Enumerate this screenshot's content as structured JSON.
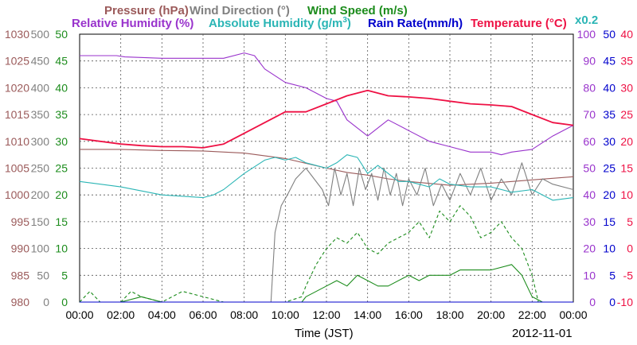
{
  "header": {
    "pressure": "Pressure (hPa)",
    "wind_direction": "Wind Direction (°)",
    "wind_speed": "Wind Speed (m/s)",
    "relative_humidity": "Relative Humidity (%)",
    "absolute_humidity_prefix": "Absolute Humidity (g/m",
    "absolute_humidity_sup": "3",
    "absolute_humidity_suffix": ")",
    "rain_rate": "Rain Rate(mm/h)",
    "temperature": "Temperature (°C)",
    "abs_factor": "x0.2"
  },
  "footer": {
    "xlabel": "Time (JST)",
    "date": "2012-11-01"
  },
  "colors": {
    "pressure": "#9b5a5a",
    "wind_direction": "#808080",
    "wind_speed": "#1c8c1c",
    "relative_humidity": "#9933cc",
    "absolute_humidity": "#2ab5b5",
    "rain_rate": "#0000cc",
    "temperature": "#ee1144"
  },
  "chart_data": {
    "type": "line",
    "xlabel": "Time (JST)",
    "x_ticks": [
      "00:00",
      "02:00",
      "04:00",
      "06:00",
      "08:00",
      "10:00",
      "12:00",
      "14:00",
      "16:00",
      "18:00",
      "20:00",
      "22:00",
      "00:00"
    ],
    "xlim_hours": [
      0,
      24
    ],
    "grid": true,
    "axes": {
      "pressure": {
        "label": "Pressure (hPa)",
        "range": [
          980,
          1030
        ],
        "ticks": [
          "1030",
          "1025",
          "1020",
          "1015",
          "1010",
          "1005",
          "1000",
          "995",
          "990",
          "985",
          "980"
        ]
      },
      "wind_direction": {
        "label": "Wind Direction (°)",
        "range": [
          0,
          500
        ],
        "ticks": [
          "500",
          "450",
          "400",
          "350",
          "300",
          "250",
          "200",
          "150",
          "100",
          "50",
          "0"
        ]
      },
      "wind_speed": {
        "label": "Wind Speed (m/s)",
        "range": [
          0,
          50
        ],
        "ticks": [
          "50",
          "45",
          "40",
          "35",
          "30",
          "25",
          "20",
          "15",
          "10",
          "5",
          "0"
        ]
      },
      "relative_humidity": {
        "label": "Relative Humidity (%)",
        "range": [
          0,
          100
        ],
        "ticks": [
          "100",
          "90",
          "80",
          "70",
          "60",
          "50",
          "40",
          "30",
          "20",
          "10",
          "0"
        ]
      },
      "rain_rate": {
        "label": "Rain Rate(mm/h)",
        "range": [
          0,
          50
        ],
        "ticks": [
          "50",
          "45",
          "40",
          "35",
          "30",
          "25",
          "20",
          "15",
          "10",
          "5",
          "0"
        ]
      },
      "temperature": {
        "label": "Temperature (°C)",
        "range": [
          -10,
          40
        ],
        "ticks": [
          "40",
          "35",
          "30",
          "25",
          "20",
          "15",
          "10",
          "5",
          "0",
          "-5",
          "-10"
        ]
      }
    },
    "series": [
      {
        "name": "Pressure (hPa)",
        "key": "pressure",
        "axis": "pressure",
        "x": [
          0,
          2,
          4,
          6,
          8,
          10,
          12,
          13,
          14,
          15,
          16,
          18,
          20,
          22,
          24
        ],
        "y": [
          1008.5,
          1008.5,
          1008.3,
          1008.2,
          1007.8,
          1006.8,
          1005.0,
          1004.2,
          1003.7,
          1003.0,
          1002.5,
          1001.8,
          1002.2,
          1002.8,
          1003.4
        ]
      },
      {
        "name": "Wind Direction (°)",
        "key": "wind_direction",
        "axis": "wind_direction",
        "x": [
          9.3,
          9.5,
          9.8,
          10.1,
          10.5,
          11.0,
          11.4,
          11.8,
          12.1,
          12.4,
          12.7,
          13.0,
          13.3,
          13.6,
          13.9,
          14.2,
          14.5,
          14.8,
          15.1,
          15.4,
          15.7,
          16.0,
          16.4,
          16.8,
          17.2,
          17.6,
          18.0,
          18.5,
          19.0,
          19.5,
          20.0,
          20.5,
          21.0,
          21.5,
          22.0,
          22.5,
          23.0,
          24.0
        ],
        "y": [
          0,
          130,
          180,
          200,
          230,
          250,
          230,
          210,
          180,
          250,
          200,
          240,
          180,
          250,
          210,
          240,
          190,
          250,
          200,
          240,
          180,
          230,
          200,
          250,
          180,
          220,
          190,
          240,
          200,
          250,
          190,
          230,
          200,
          260,
          200,
          230,
          220,
          210
        ]
      },
      {
        "name": "Wind Speed",
        "key": "wind_speed",
        "axis": "wind_speed",
        "style": "solid",
        "x": [
          0,
          2,
          3,
          4,
          5,
          8,
          9,
          10,
          10.8,
          11,
          12,
          12.5,
          13,
          13.5,
          14,
          14.5,
          15,
          16,
          16.5,
          17,
          18,
          18.5,
          19,
          20,
          21,
          21.5,
          22,
          22.5,
          23,
          24
        ],
        "y": [
          0,
          0,
          1,
          0,
          0,
          0,
          0,
          0,
          0,
          1,
          3,
          4,
          3,
          5,
          4,
          3,
          3,
          5,
          4,
          5,
          5,
          6,
          6,
          6,
          7,
          5,
          1,
          0,
          0,
          0
        ]
      },
      {
        "name": "Wind Speed",
        "key": "wind_speed",
        "axis": "wind_speed",
        "style": "dashed",
        "x": [
          0,
          0.5,
          1,
          2,
          2.5,
          3,
          4,
          5,
          7,
          8,
          9,
          10,
          10.8,
          11,
          11.5,
          12,
          12.5,
          13,
          13.5,
          14,
          14.5,
          15,
          15.5,
          16,
          16.5,
          17,
          17.5,
          18,
          18.5,
          19,
          19.5,
          20,
          20.5,
          21,
          21.5,
          22,
          22.3,
          23,
          24
        ],
        "y": [
          0,
          2,
          0,
          0,
          2,
          1,
          0,
          2,
          0,
          0,
          0,
          0,
          1,
          3,
          7,
          10,
          12,
          11,
          13,
          10,
          9,
          11,
          12,
          13,
          15,
          12,
          17,
          15,
          18,
          16,
          12,
          13,
          15,
          12,
          10,
          5,
          0,
          0,
          0
        ]
      },
      {
        "name": "Relative Humidity (%)",
        "key": "relative_humidity",
        "axis": "relative_humidity",
        "x": [
          0,
          1.8,
          2.2,
          4,
          6,
          7,
          8,
          8.5,
          9,
          10,
          11,
          12,
          12.5,
          13,
          14,
          14.5,
          15,
          16,
          17,
          18,
          19,
          20,
          20.5,
          21,
          22,
          23,
          24
        ],
        "y": [
          92,
          92,
          91.5,
          91,
          91,
          91,
          93,
          92,
          87,
          82,
          80,
          76,
          75,
          68,
          62,
          65,
          68,
          64,
          60,
          58,
          56,
          56,
          55,
          56,
          57,
          62,
          66
        ]
      },
      {
        "name": "Absolute Humidity (g/m3)",
        "key": "absolute_humidity",
        "axis": "relative_humidity",
        "x": [
          0,
          2,
          4,
          6,
          6.5,
          7,
          8,
          9,
          9.5,
          10,
          10.5,
          11,
          12,
          12.5,
          13,
          13.5,
          14,
          14.5,
          15,
          15.5,
          16,
          17,
          17.5,
          18,
          19,
          20,
          21,
          22,
          22.5,
          23,
          24
        ],
        "y": [
          45,
          43,
          40,
          39,
          40,
          42,
          48,
          53,
          54,
          53,
          54,
          52,
          50,
          52,
          55,
          54,
          48,
          51,
          48,
          45,
          45,
          43,
          46,
          44,
          43,
          43,
          41,
          42,
          40,
          38,
          39
        ]
      },
      {
        "name": "Rain Rate(mm/h)",
        "key": "rain_rate",
        "axis": "rain_rate",
        "x": [
          0,
          24
        ],
        "y": [
          0,
          0
        ]
      },
      {
        "name": "Temperature (°C)",
        "key": "temperature",
        "axis": "temperature",
        "x": [
          0,
          1,
          2,
          3,
          4,
          5,
          6,
          7,
          8,
          9,
          10,
          11,
          12,
          13,
          14,
          15,
          16,
          17,
          18,
          19,
          20,
          21,
          22,
          23,
          24
        ],
        "y": [
          20.5,
          20.0,
          19.5,
          19.2,
          19.0,
          19.0,
          18.8,
          19.5,
          21.5,
          23.5,
          25.5,
          25.5,
          27.0,
          28.5,
          29.5,
          28.5,
          28.3,
          28.0,
          27.5,
          27.0,
          26.8,
          26.5,
          25.0,
          23.5,
          23.0
        ]
      }
    ]
  }
}
